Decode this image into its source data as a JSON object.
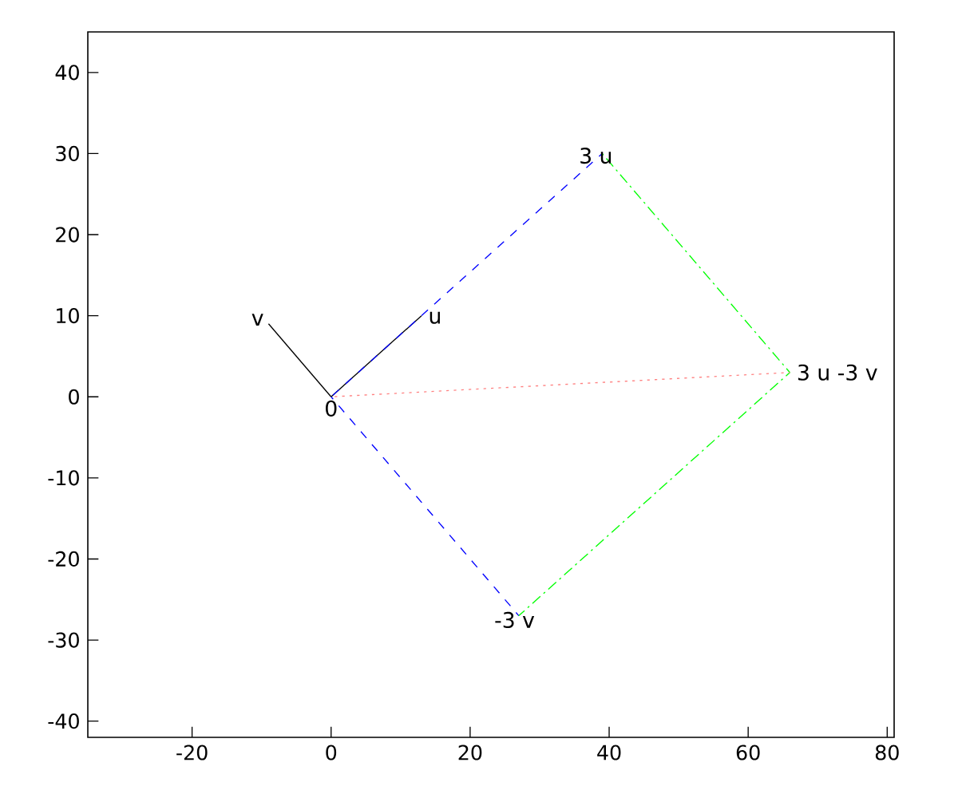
{
  "chart_data": {
    "type": "line",
    "xlim": [
      -35,
      81
    ],
    "ylim": [
      -42,
      45
    ],
    "xticks": [
      -20,
      0,
      20,
      40,
      60,
      80
    ],
    "yticks": [
      -40,
      -30,
      -20,
      -10,
      0,
      10,
      20,
      30,
      40
    ],
    "grid": false,
    "marker": "none",
    "series": [
      {
        "color": "#000000",
        "line_style": "solid",
        "x": [
          0,
          13
        ],
        "values": [
          0,
          10
        ]
      },
      {
        "color": "#000000",
        "line_style": "solid",
        "x": [
          0,
          -9
        ],
        "values": [
          0,
          9
        ]
      },
      {
        "color": "#0000ff",
        "line_style": "dashed",
        "x": [
          0,
          39
        ],
        "values": [
          0,
          30
        ]
      },
      {
        "color": "#0000ff",
        "line_style": "dashed",
        "x": [
          0,
          27
        ],
        "values": [
          0,
          -27
        ]
      },
      {
        "color": "#00ff00",
        "line_style": "dashdot",
        "x": [
          39,
          66
        ],
        "values": [
          30,
          3
        ]
      },
      {
        "color": "#00ff00",
        "line_style": "dashdot",
        "x": [
          27,
          66
        ],
        "values": [
          -27,
          3
        ]
      },
      {
        "color": "#ff8080",
        "line_style": "dotted",
        "x": [
          0,
          66
        ],
        "values": [
          0,
          3
        ]
      }
    ],
    "annotations": [
      {
        "text": "u",
        "x": 13,
        "y": 10
      },
      {
        "text": "v",
        "x": -9,
        "y": 9
      },
      {
        "text": "0",
        "x": 0,
        "y": 0
      },
      {
        "text": "3 u",
        "x": 39,
        "y": 30
      },
      {
        "text": "-3 v",
        "x": 27,
        "y": -27
      },
      {
        "text": "3 u -3 v",
        "x": 66,
        "y": 3
      }
    ]
  }
}
